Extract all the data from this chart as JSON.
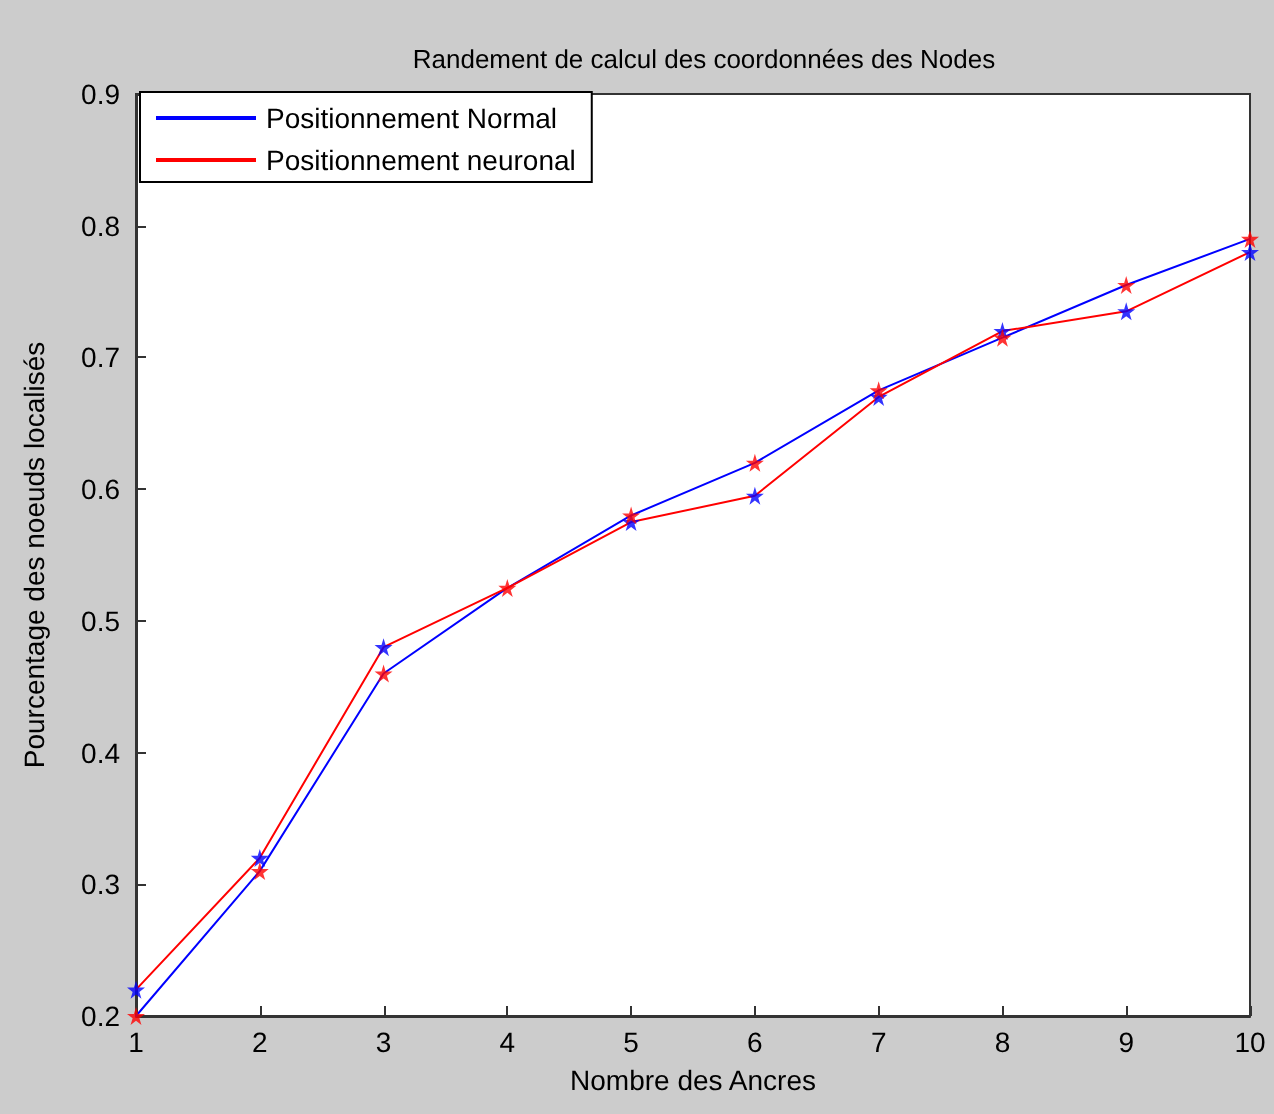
{
  "chart_data": {
    "type": "line",
    "title": "Randement de calcul des coordonnées des Nodes",
    "xlabel": "Nombre des Ancres",
    "ylabel": "Pourcentage des noeuds localisés",
    "x": [
      1,
      2,
      3,
      4,
      5,
      6,
      7,
      8,
      9,
      10
    ],
    "series": [
      {
        "name": "Positionnement Normal",
        "color": "#0000ff",
        "marker": "none",
        "values": [
          0.2,
          0.31,
          0.46,
          0.525,
          0.58,
          0.62,
          0.675,
          0.715,
          0.755,
          0.79
        ]
      },
      {
        "name": "Positionnement neuronal",
        "color": "#ff0000",
        "marker": "none",
        "values": [
          0.22,
          0.32,
          0.48,
          0.525,
          0.575,
          0.595,
          0.67,
          0.72,
          0.735,
          0.78
        ]
      },
      {
        "type": "scatter",
        "color": "#0000ff",
        "marker": "star",
        "values": [
          0.22,
          0.32,
          0.48,
          null,
          0.575,
          0.595,
          0.67,
          0.72,
          0.735,
          0.78
        ]
      },
      {
        "type": "scatter",
        "color": "#ff0000",
        "marker": "star",
        "values": [
          0.2,
          0.31,
          0.46,
          0.525,
          0.58,
          0.62,
          0.675,
          0.715,
          0.755,
          0.79
        ]
      }
    ],
    "xlim": [
      1,
      10
    ],
    "xticks": [
      1,
      2,
      3,
      4,
      5,
      6,
      7,
      8,
      9,
      10
    ],
    "ylim": [
      0.2,
      0.9
    ],
    "yticks": [
      0.2,
      0.3,
      0.4,
      0.5,
      0.6,
      0.7,
      0.8,
      0.9
    ],
    "grid": false,
    "legend": "top left",
    "line_style": "solid"
  }
}
